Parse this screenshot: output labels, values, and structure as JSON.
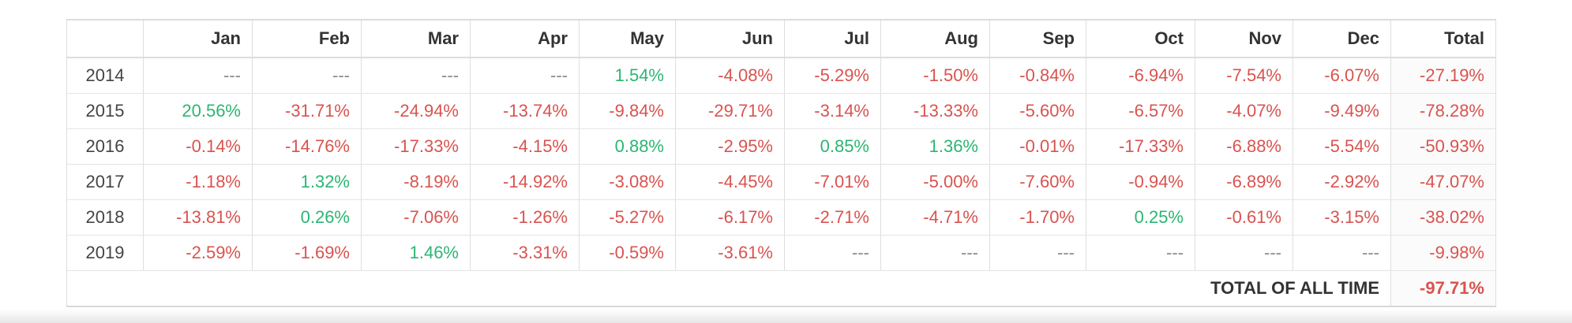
{
  "table": {
    "columns": [
      "",
      "Jan",
      "Feb",
      "Mar",
      "Apr",
      "May",
      "Jun",
      "Jul",
      "Aug",
      "Sep",
      "Oct",
      "Nov",
      "Dec",
      "Total"
    ],
    "rows": [
      {
        "year": "2014",
        "cells": [
          {
            "text": "---",
            "tone": "na"
          },
          {
            "text": "---",
            "tone": "na"
          },
          {
            "text": "---",
            "tone": "na"
          },
          {
            "text": "---",
            "tone": "na"
          },
          {
            "text": "1.54%",
            "tone": "pos"
          },
          {
            "text": "-4.08%",
            "tone": "neg"
          },
          {
            "text": "-5.29%",
            "tone": "neg"
          },
          {
            "text": "-1.50%",
            "tone": "neg"
          },
          {
            "text": "-0.84%",
            "tone": "neg"
          },
          {
            "text": "-6.94%",
            "tone": "neg"
          },
          {
            "text": "-7.54%",
            "tone": "neg"
          },
          {
            "text": "-6.07%",
            "tone": "neg"
          },
          {
            "text": "-27.19%",
            "tone": "neg"
          }
        ]
      },
      {
        "year": "2015",
        "cells": [
          {
            "text": "20.56%",
            "tone": "pos"
          },
          {
            "text": "-31.71%",
            "tone": "neg"
          },
          {
            "text": "-24.94%",
            "tone": "neg"
          },
          {
            "text": "-13.74%",
            "tone": "neg"
          },
          {
            "text": "-9.84%",
            "tone": "neg"
          },
          {
            "text": "-29.71%",
            "tone": "neg"
          },
          {
            "text": "-3.14%",
            "tone": "neg"
          },
          {
            "text": "-13.33%",
            "tone": "neg"
          },
          {
            "text": "-5.60%",
            "tone": "neg"
          },
          {
            "text": "-6.57%",
            "tone": "neg"
          },
          {
            "text": "-4.07%",
            "tone": "neg"
          },
          {
            "text": "-9.49%",
            "tone": "neg"
          },
          {
            "text": "-78.28%",
            "tone": "neg"
          }
        ]
      },
      {
        "year": "2016",
        "cells": [
          {
            "text": "-0.14%",
            "tone": "neg"
          },
          {
            "text": "-14.76%",
            "tone": "neg"
          },
          {
            "text": "-17.33%",
            "tone": "neg"
          },
          {
            "text": "-4.15%",
            "tone": "neg"
          },
          {
            "text": "0.88%",
            "tone": "pos"
          },
          {
            "text": "-2.95%",
            "tone": "neg"
          },
          {
            "text": "0.85%",
            "tone": "pos"
          },
          {
            "text": "1.36%",
            "tone": "pos"
          },
          {
            "text": "-0.01%",
            "tone": "neg"
          },
          {
            "text": "-17.33%",
            "tone": "neg"
          },
          {
            "text": "-6.88%",
            "tone": "neg"
          },
          {
            "text": "-5.54%",
            "tone": "neg"
          },
          {
            "text": "-50.93%",
            "tone": "neg"
          }
        ]
      },
      {
        "year": "2017",
        "cells": [
          {
            "text": "-1.18%",
            "tone": "neg"
          },
          {
            "text": "1.32%",
            "tone": "pos"
          },
          {
            "text": "-8.19%",
            "tone": "neg"
          },
          {
            "text": "-14.92%",
            "tone": "neg"
          },
          {
            "text": "-3.08%",
            "tone": "neg"
          },
          {
            "text": "-4.45%",
            "tone": "neg"
          },
          {
            "text": "-7.01%",
            "tone": "neg"
          },
          {
            "text": "-5.00%",
            "tone": "neg"
          },
          {
            "text": "-7.60%",
            "tone": "neg"
          },
          {
            "text": "-0.94%",
            "tone": "neg"
          },
          {
            "text": "-6.89%",
            "tone": "neg"
          },
          {
            "text": "-2.92%",
            "tone": "neg"
          },
          {
            "text": "-47.07%",
            "tone": "neg"
          }
        ]
      },
      {
        "year": "2018",
        "cells": [
          {
            "text": "-13.81%",
            "tone": "neg"
          },
          {
            "text": "0.26%",
            "tone": "pos"
          },
          {
            "text": "-7.06%",
            "tone": "neg"
          },
          {
            "text": "-1.26%",
            "tone": "neg"
          },
          {
            "text": "-5.27%",
            "tone": "neg"
          },
          {
            "text": "-6.17%",
            "tone": "neg"
          },
          {
            "text": "-2.71%",
            "tone": "neg"
          },
          {
            "text": "-4.71%",
            "tone": "neg"
          },
          {
            "text": "-1.70%",
            "tone": "neg"
          },
          {
            "text": "0.25%",
            "tone": "pos"
          },
          {
            "text": "-0.61%",
            "tone": "neg"
          },
          {
            "text": "-3.15%",
            "tone": "neg"
          },
          {
            "text": "-38.02%",
            "tone": "neg"
          }
        ]
      },
      {
        "year": "2019",
        "cells": [
          {
            "text": "-2.59%",
            "tone": "neg"
          },
          {
            "text": "-1.69%",
            "tone": "neg"
          },
          {
            "text": "1.46%",
            "tone": "pos"
          },
          {
            "text": "-3.31%",
            "tone": "neg"
          },
          {
            "text": "-0.59%",
            "tone": "neg"
          },
          {
            "text": "-3.61%",
            "tone": "neg"
          },
          {
            "text": "---",
            "tone": "na"
          },
          {
            "text": "---",
            "tone": "na"
          },
          {
            "text": "---",
            "tone": "na"
          },
          {
            "text": "---",
            "tone": "na"
          },
          {
            "text": "---",
            "tone": "na"
          },
          {
            "text": "---",
            "tone": "na"
          },
          {
            "text": "-9.98%",
            "tone": "neg"
          }
        ]
      }
    ],
    "grand_total": {
      "label": "TOTAL OF ALL TIME",
      "value": "-97.71%"
    }
  },
  "colors": {
    "positive": "#2bb673",
    "negative": "#d9534f",
    "neutral": "#8a8a8a"
  }
}
